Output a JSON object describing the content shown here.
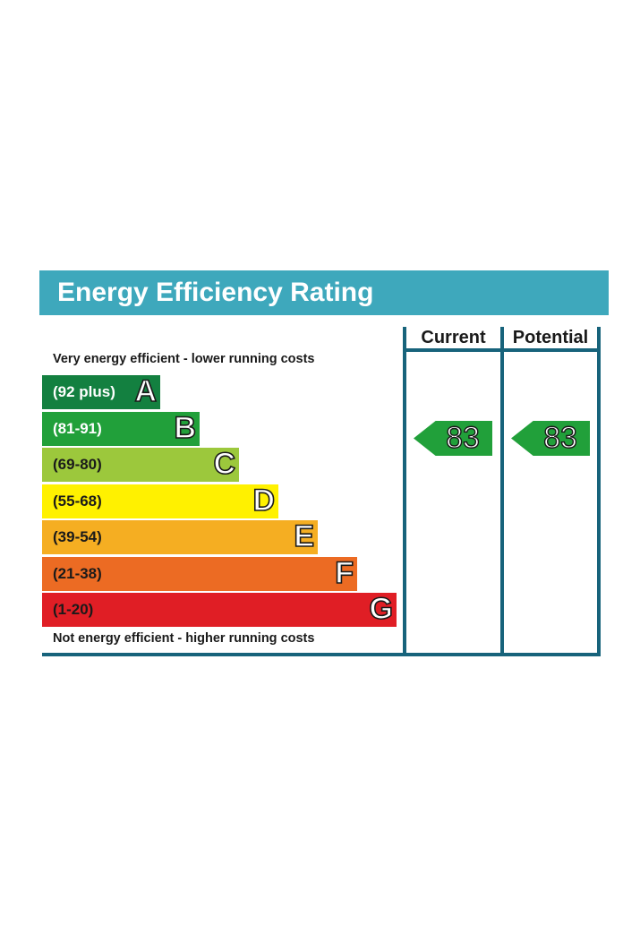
{
  "chart_data": {
    "type": "table",
    "title": "Energy Efficiency Rating",
    "columns": [
      "Current",
      "Potential"
    ],
    "top_caption": "Very energy efficient - lower running costs",
    "bottom_caption": "Not energy efficient - higher running costs",
    "bands": [
      {
        "range": "(92 plus)",
        "letter": "A",
        "color": "#138040",
        "text_color": "#ffffff"
      },
      {
        "range": "(81-91)",
        "letter": "B",
        "color": "#21a03a",
        "text_color": "#ffffff"
      },
      {
        "range": "(69-80)",
        "letter": "C",
        "color": "#9cc83c",
        "text_color": "#1a1a1a"
      },
      {
        "range": "(55-68)",
        "letter": "D",
        "color": "#fff100",
        "text_color": "#1a1a1a"
      },
      {
        "range": "(39-54)",
        "letter": "E",
        "color": "#f5ae22",
        "text_color": "#1a1a1a"
      },
      {
        "range": "(21-38)",
        "letter": "F",
        "color": "#ec6b23",
        "text_color": "#1a1a1a"
      },
      {
        "range": "(1-20)",
        "letter": "G",
        "color": "#e01e25",
        "text_color": "#1a1a1a"
      }
    ],
    "ratings": {
      "current": {
        "value": "83",
        "band": "B",
        "color": "#21a03a"
      },
      "potential": {
        "value": "83",
        "band": "B",
        "color": "#21a03a"
      }
    }
  }
}
